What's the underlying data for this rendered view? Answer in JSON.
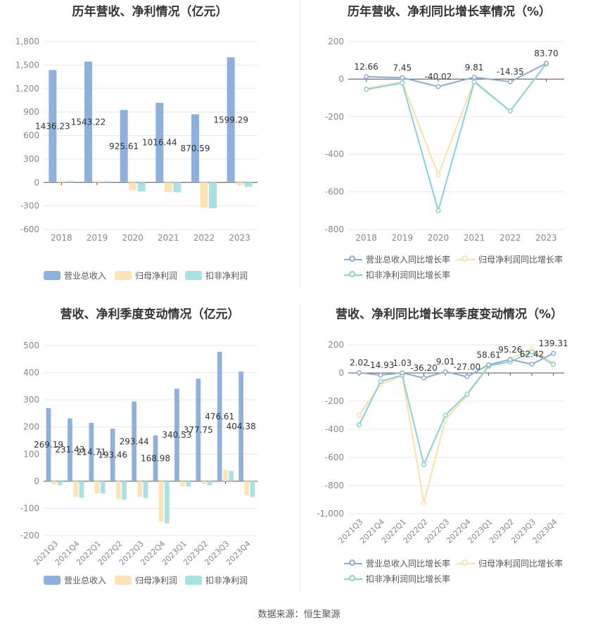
{
  "source": "数据来源：恒生聚源",
  "colors": {
    "revenue": "#8eb0dd",
    "net_profit": "#fde4b4",
    "deducted_profit": "#a9e2e4",
    "rev_growth_line": "#8eaad8",
    "np_growth_line": "#fbe0a8",
    "dp_growth_line": "#86d3d6",
    "grid": "#e8e8e8",
    "axis_text": "#888888"
  },
  "legend_labels": {
    "revenue": "营业总收入",
    "net_profit": "归母净利润",
    "deducted_profit": "扣非净利润",
    "rev_growth": "营业总收入同比增长率",
    "np_growth": "归母净利润同比增长率",
    "dp_growth": "扣非净利润同比增长率"
  },
  "chart_data": [
    {
      "id": "annual_values",
      "type": "bar",
      "title": "历年营收、净利情况（亿元）",
      "categories": [
        "2018",
        "2019",
        "2020",
        "2021",
        "2022",
        "2023"
      ],
      "series": [
        {
          "name": "营业总收入",
          "values": [
            1436.23,
            1543.22,
            925.61,
            1016.44,
            870.59,
            1599.29
          ]
        },
        {
          "name": "归母净利润",
          "values": [
            22,
            20,
            -100,
            -120,
            -320,
            -30
          ]
        },
        {
          "name": "扣非净利润",
          "values": [
            18,
            15,
            -115,
            -125,
            -330,
            -55
          ]
        }
      ],
      "data_labels": [
        "1436.23",
        "1543.22",
        "925.61",
        "1016.44",
        "870.59",
        "1599.29"
      ],
      "ylim": [
        -600,
        1800
      ],
      "yticks": [
        -600,
        -300,
        0,
        300,
        600,
        900,
        "1,200",
        "1,500",
        "1,800"
      ],
      "grid": true,
      "legend": "bottom"
    },
    {
      "id": "annual_growth",
      "type": "line",
      "title": "历年营收、净利同比增长率情况（%）",
      "categories": [
        "2018",
        "2019",
        "2020",
        "2021",
        "2022",
        "2023"
      ],
      "series": [
        {
          "name": "营业总收入同比增长率",
          "values": [
            12.66,
            7.45,
            -40.02,
            9.81,
            -14.35,
            83.7
          ]
        },
        {
          "name": "归母净利润同比增长率",
          "values": [
            -50,
            -15,
            -510,
            -10,
            -170,
            80
          ]
        },
        {
          "name": "扣非净利润同比增长率",
          "values": [
            -55,
            -20,
            -700,
            -15,
            -170,
            82
          ]
        }
      ],
      "data_labels": [
        "12.66",
        "7.45",
        "-40.02",
        "9.81",
        "-14.35",
        "83.70"
      ],
      "ylim": [
        -800,
        200
      ],
      "yticks": [
        -800,
        -600,
        -400,
        -200,
        0,
        200
      ],
      "grid": true,
      "legend": "bottom"
    },
    {
      "id": "quarterly_values",
      "type": "bar",
      "title": "营收、净利季度变动情况（亿元）",
      "categories": [
        "2021Q3",
        "2021Q4",
        "2022Q1",
        "2022Q2",
        "2022Q3",
        "2022Q4",
        "2023Q1",
        "2023Q2",
        "2023Q3",
        "2023Q4"
      ],
      "series": [
        {
          "name": "营业总收入",
          "values": [
            269.19,
            231.43,
            214.71,
            193.46,
            293.44,
            168.98,
            340.53,
            377.75,
            476.61,
            404.38
          ]
        },
        {
          "name": "归母净利润",
          "values": [
            -12,
            -58,
            -45,
            -65,
            -58,
            -150,
            -18,
            -8,
            42,
            -52
          ]
        },
        {
          "name": "扣非净利润",
          "values": [
            -15,
            -60,
            -45,
            -68,
            -62,
            -155,
            -20,
            -15,
            38,
            -58
          ]
        }
      ],
      "data_labels": [
        "269.19",
        "231.43",
        "214.71",
        "193.46",
        "293.44",
        "168.98",
        "340.53",
        "377.75",
        "476.61",
        "404.38"
      ],
      "ylim": [
        -200,
        500
      ],
      "yticks": [
        -200,
        -100,
        0,
        100,
        200,
        300,
        400,
        500
      ],
      "grid": true,
      "legend": "bottom"
    },
    {
      "id": "quarterly_growth",
      "type": "line",
      "title": "营收、净利同比增长率季度变动情况（%）",
      "categories": [
        "2021Q3",
        "2021Q4",
        "2022Q1",
        "2022Q2",
        "2022Q3",
        "2022Q4",
        "2023Q1",
        "2023Q2",
        "2023Q3",
        "2023Q4"
      ],
      "series": [
        {
          "name": "营业总收入同比增长率",
          "values": [
            2.02,
            -14.93,
            1.03,
            -36.2,
            9.01,
            -27.0,
            58.61,
            95.26,
            62.42,
            139.31
          ]
        },
        {
          "name": "归母净利润同比增长率",
          "values": [
            -300,
            -80,
            -20,
            -920,
            -330,
            -160,
            45,
            100,
            170,
            70
          ]
        },
        {
          "name": "扣非净利润同比增长率",
          "values": [
            -370,
            -60,
            -15,
            -650,
            -300,
            -150,
            50,
            80,
            150,
            60
          ]
        }
      ],
      "data_labels": [
        "2.02",
        "-14.93",
        "1.03",
        "-36.20",
        "9.01",
        "-27.00",
        "58.61",
        "95.26",
        "62.42",
        "139.31"
      ],
      "ylim": [
        -1000,
        200
      ],
      "yticks": [
        "-1,000",
        -800,
        -600,
        -400,
        -200,
        0,
        200
      ],
      "grid": true,
      "legend": "bottom"
    }
  ]
}
